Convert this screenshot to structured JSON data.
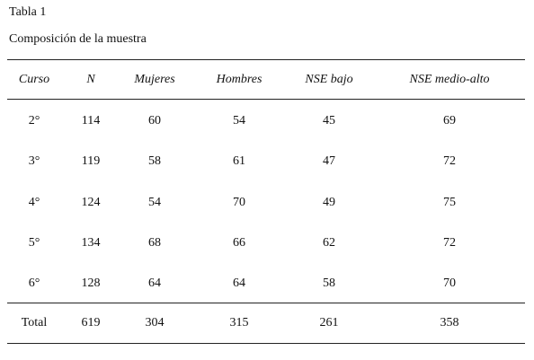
{
  "header": {
    "title": "Tabla 1",
    "caption": "Composición de la muestra"
  },
  "table": {
    "columns": [
      "Curso",
      "N",
      "Mujeres",
      "Hombres",
      "NSE bajo",
      "NSE medio-alto"
    ],
    "rows": [
      [
        "2°",
        "114",
        "60",
        "54",
        "45",
        "69"
      ],
      [
        "3°",
        "119",
        "58",
        "61",
        "47",
        "72"
      ],
      [
        "4°",
        "124",
        "54",
        "70",
        "49",
        "75"
      ],
      [
        "5°",
        "134",
        "68",
        "66",
        "62",
        "72"
      ],
      [
        "6°",
        "128",
        "64",
        "64",
        "58",
        "70"
      ]
    ],
    "total": [
      "Total",
      "619",
      "304",
      "315",
      "261",
      "358"
    ]
  }
}
